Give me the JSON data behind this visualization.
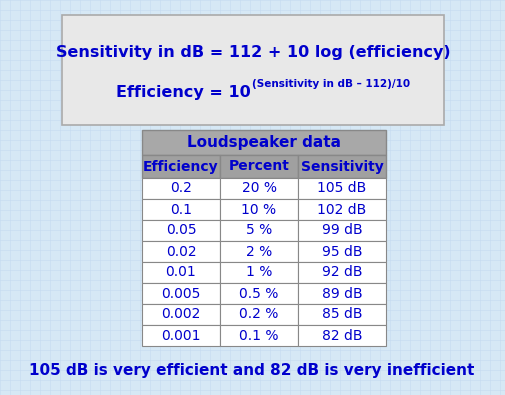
{
  "background_color": "#d6e8f5",
  "formula_box_color": "#e8e8e8",
  "formula_box_edge": "#aaaaaa",
  "formula_line1": "Sensitivity in dB = 112 + 10 log (efficiency)",
  "formula_line2_base": "Efficiency = 10",
  "formula_line2_exp": "(Sensitivity in dB – 112)/10",
  "table_title": "Loudspeaker data",
  "table_header": [
    "Efficiency",
    "Percent",
    "Sensitivity"
  ],
  "table_data": [
    [
      "0.2",
      "20 %",
      "105 dB"
    ],
    [
      "0.1",
      "10 %",
      "102 dB"
    ],
    [
      "0.05",
      "5 %",
      "99 dB"
    ],
    [
      "0.02",
      "2 %",
      "95 dB"
    ],
    [
      "0.01",
      "1 %",
      "92 dB"
    ],
    [
      "0.005",
      "0.5 %",
      "89 dB"
    ],
    [
      "0.002",
      "0.2 %",
      "85 dB"
    ],
    [
      "0.001",
      "0.1 %",
      "82 dB"
    ]
  ],
  "footer_text": "105 dB is very efficient and 82 dB is very inefficient",
  "text_color": "#0000cc",
  "table_header_bg": "#a0a0a0",
  "table_title_bg": "#a8a8a8",
  "table_row_bg": "#ffffff",
  "table_border": "#888888",
  "grid_color": "#c5daf0",
  "grid_minor_color": "#daeaf8"
}
